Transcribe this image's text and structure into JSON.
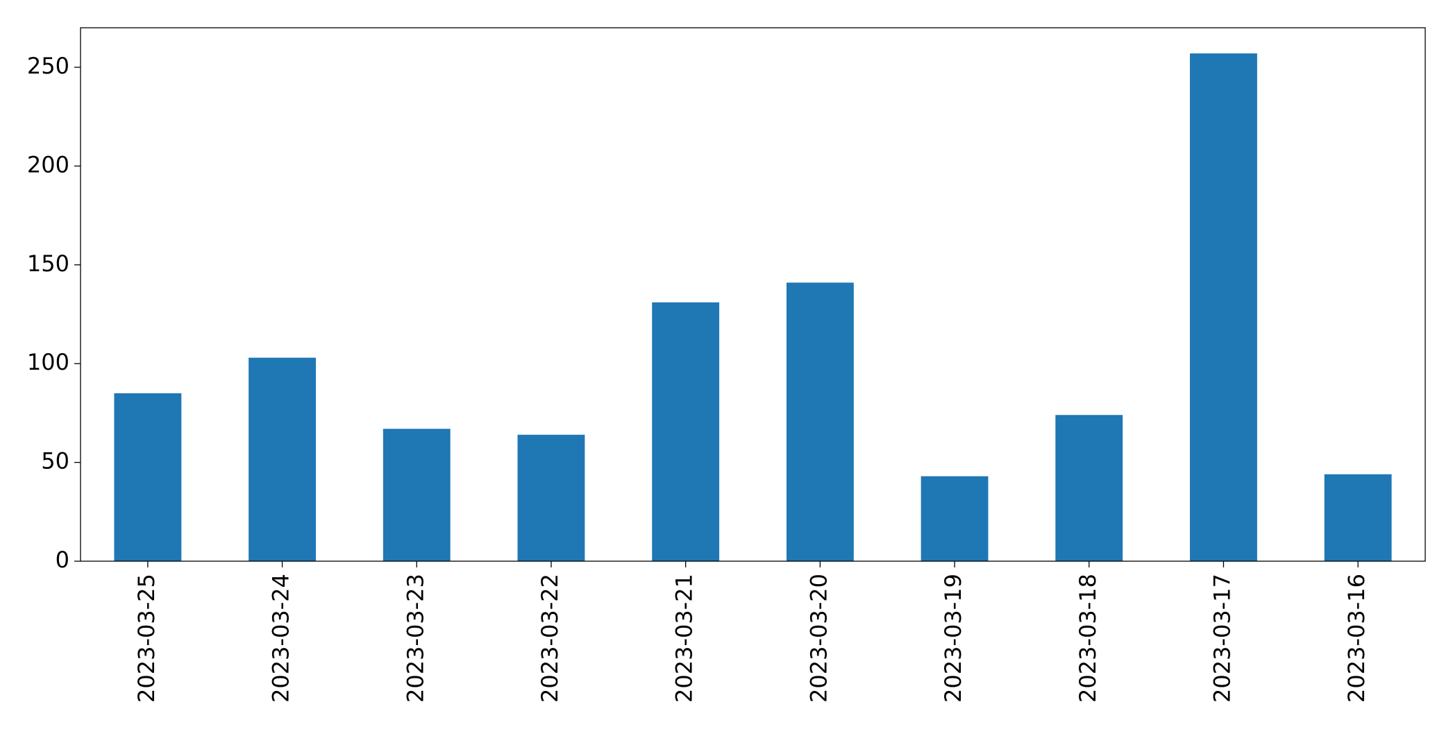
{
  "chart_data": {
    "type": "bar",
    "categories": [
      "2023-03-25",
      "2023-03-24",
      "2023-03-23",
      "2023-03-22",
      "2023-03-21",
      "2023-03-20",
      "2023-03-19",
      "2023-03-18",
      "2023-03-17",
      "2023-03-16"
    ],
    "values": [
      85,
      103,
      67,
      64,
      131,
      141,
      43,
      74,
      257,
      44
    ],
    "color": "#1f77b4",
    "ylim": [
      0,
      270
    ],
    "yticks": [
      0,
      50,
      100,
      150,
      200,
      250
    ],
    "grid": false
  }
}
